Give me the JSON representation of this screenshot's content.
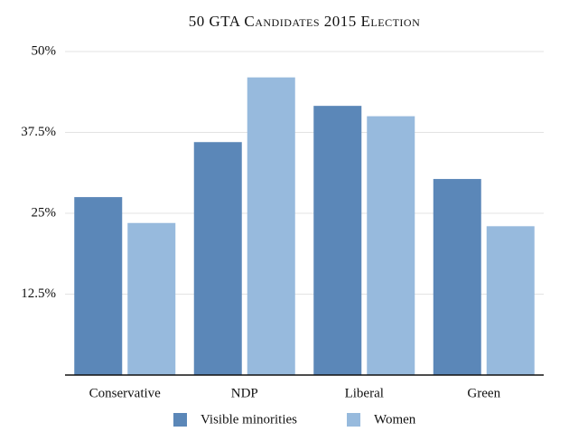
{
  "chart_data": {
    "type": "bar",
    "title": "50 GTA Candidates 2015 Election",
    "categories": [
      "Conservative",
      "NDP",
      "Liberal",
      "Green"
    ],
    "series": [
      {
        "name": "Visible minorities",
        "color": "#5b87b8",
        "values": [
          27.5,
          36,
          41.6,
          30.3
        ]
      },
      {
        "name": "Women",
        "color": "#97badd",
        "values": [
          23.5,
          46,
          40,
          23
        ]
      }
    ],
    "ylim": [
      0,
      50
    ],
    "yticks": [
      {
        "value": 12.5,
        "label": "12.5%"
      },
      {
        "value": 25,
        "label": "25%"
      },
      {
        "value": 37.5,
        "label": "37.5%"
      },
      {
        "value": 50,
        "label": "50%"
      }
    ],
    "grid": true,
    "legend": "bottom"
  }
}
